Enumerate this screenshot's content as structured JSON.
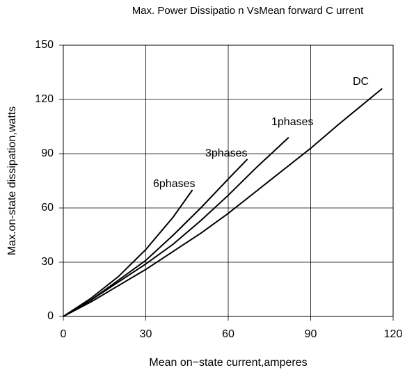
{
  "chart_data": {
    "type": "line",
    "title": "Max. Power Dissipatio n VsMean forward C urrent",
    "x_label": "Mean on−state current,amperes",
    "y_label": "Max.on-state dissipation,watts",
    "xlim": [
      0,
      120
    ],
    "xticks": [
      0,
      30,
      60,
      90,
      120
    ],
    "ylim": [
      0,
      150
    ],
    "yticks": [
      0,
      30,
      60,
      90,
      120,
      150
    ],
    "grid": true,
    "series": [
      {
        "name": "DC",
        "color": "#000000",
        "x": [
          0,
          10,
          20,
          30,
          40,
          50,
          60,
          70,
          80,
          90,
          100,
          116
        ],
        "values": [
          0,
          8,
          17,
          26,
          36,
          46,
          57,
          69,
          81,
          93,
          106,
          126
        ]
      },
      {
        "name": "1phases",
        "color": "#000000",
        "x": [
          0,
          10,
          20,
          30,
          40,
          50,
          60,
          70,
          82
        ],
        "values": [
          0,
          9,
          19,
          29,
          40,
          53,
          67,
          82,
          99
        ]
      },
      {
        "name": "3phases",
        "color": "#000000",
        "x": [
          0,
          10,
          20,
          30,
          40,
          50,
          60,
          67
        ],
        "values": [
          0,
          9,
          20,
          31,
          45,
          60,
          76,
          87
        ]
      },
      {
        "name": "6phases",
        "color": "#000000",
        "x": [
          0,
          10,
          20,
          30,
          40,
          47
        ],
        "values": [
          0,
          10,
          22,
          37,
          55,
          70
        ]
      }
    ]
  }
}
